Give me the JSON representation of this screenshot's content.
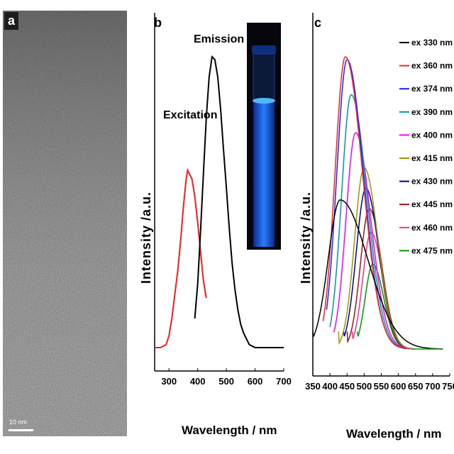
{
  "panel_a": {
    "letter": "a",
    "scale_label": "10 nm"
  },
  "panel_b": {
    "letter": "b",
    "ylabel": "Intensity /a.u.",
    "xlabel": "Wavelength / nm",
    "inset_desc": "fluorescence vial photo",
    "colors": {
      "excitation": "#ff1a1a",
      "emission": "#000000",
      "vial_glow": "#1e6bff"
    }
  },
  "panel_c": {
    "letter": "c",
    "ylabel": "Intensity /a.u.",
    "xlabel": "Wavelength / nm"
  },
  "chart_data": [
    {
      "type": "line",
      "title": "",
      "xlabel": "Wavelength / nm",
      "ylabel": "Intensity /a.u.",
      "xlim": [
        250,
        700
      ],
      "ylim": [
        0,
        1
      ],
      "xticks": [
        300,
        400,
        500,
        600,
        700
      ],
      "grid": false,
      "annotations": [
        "Excitation",
        "Emission"
      ],
      "series": [
        {
          "name": "Excitation",
          "color": "#ff1a1a",
          "x": [
            250,
            270,
            290,
            300,
            310,
            320,
            330,
            340,
            350,
            360,
            365,
            370,
            380,
            390,
            400,
            410,
            420,
            430
          ],
          "y": [
            0.0,
            0.0,
            0.01,
            0.04,
            0.1,
            0.18,
            0.26,
            0.36,
            0.48,
            0.58,
            0.61,
            0.6,
            0.58,
            0.52,
            0.43,
            0.33,
            0.23,
            0.17
          ]
        },
        {
          "name": "Emission",
          "color": "#000000",
          "x": [
            390,
            400,
            410,
            420,
            430,
            440,
            450,
            460,
            470,
            480,
            490,
            500,
            510,
            520,
            530,
            540,
            550,
            560,
            570,
            580,
            600,
            620,
            650,
            700
          ],
          "y": [
            0.1,
            0.22,
            0.4,
            0.6,
            0.79,
            0.93,
            1.0,
            0.99,
            0.93,
            0.82,
            0.68,
            0.55,
            0.41,
            0.29,
            0.2,
            0.13,
            0.08,
            0.05,
            0.03,
            0.01,
            0.0,
            0.0,
            0.0,
            0.0
          ]
        }
      ]
    },
    {
      "type": "line",
      "title": "",
      "xlabel": "Wavelength / nm",
      "ylabel": "Intensity /a.u.",
      "xlim": [
        350,
        750
      ],
      "ylim": [
        0,
        1
      ],
      "xticks": [
        350,
        400,
        450,
        500,
        550,
        600,
        650,
        700,
        750
      ],
      "grid": false,
      "legend": "right",
      "series": [
        {
          "name": "ex 330 nm",
          "color": "#000000",
          "start": 350,
          "peak": 430,
          "height": 0.51,
          "wl": 35,
          "wr": 80
        },
        {
          "name": "ex 360 nm",
          "color": "#ff2020",
          "start": 380,
          "peak": 445,
          "height": 1.0,
          "wl": 30,
          "wr": 50
        },
        {
          "name": "ex 374 nm",
          "color": "#2020ff",
          "start": 390,
          "peak": 450,
          "height": 0.99,
          "wl": 30,
          "wr": 48
        },
        {
          "name": "ex 390 nm",
          "color": "#009999",
          "start": 400,
          "peak": 462,
          "height": 0.87,
          "wl": 28,
          "wr": 46
        },
        {
          "name": "ex 400 nm",
          "color": "#ff00ff",
          "start": 410,
          "peak": 475,
          "height": 0.74,
          "wl": 28,
          "wr": 44
        },
        {
          "name": "ex 415 nm",
          "color": "#999900",
          "start": 425,
          "peak": 500,
          "height": 0.62,
          "wl": 28,
          "wr": 40
        },
        {
          "name": "ex 430 nm",
          "color": "#000099",
          "start": 440,
          "peak": 505,
          "height": 0.55,
          "wl": 28,
          "wr": 38
        },
        {
          "name": "ex 445 nm",
          "color": "#a01515",
          "start": 450,
          "peak": 515,
          "height": 0.48,
          "wl": 26,
          "wr": 36
        },
        {
          "name": "ex 460 nm",
          "color": "#ff2e8e",
          "start": 465,
          "peak": 520,
          "height": 0.4,
          "wl": 24,
          "wr": 34
        },
        {
          "name": "ex 475 nm",
          "color": "#009900",
          "start": 480,
          "peak": 525,
          "height": 0.29,
          "wl": 22,
          "wr": 32
        }
      ]
    }
  ]
}
